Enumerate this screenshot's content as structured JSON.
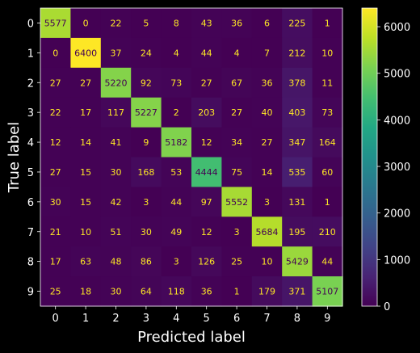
{
  "chart_data": {
    "type": "heatmap",
    "colormap": "viridis",
    "background": "#000000",
    "xlabel": "Predicted label",
    "ylabel": "True label",
    "x_categories": [
      "0",
      "1",
      "2",
      "3",
      "4",
      "5",
      "6",
      "7",
      "8",
      "9"
    ],
    "y_categories": [
      "0",
      "1",
      "2",
      "3",
      "4",
      "5",
      "6",
      "7",
      "8",
      "9"
    ],
    "values": [
      [
        5577,
        0,
        22,
        5,
        8,
        43,
        36,
        6,
        225,
        1
      ],
      [
        0,
        6400,
        37,
        24,
        4,
        44,
        4,
        7,
        212,
        10
      ],
      [
        27,
        27,
        5220,
        92,
        73,
        27,
        67,
        36,
        378,
        11
      ],
      [
        22,
        17,
        117,
        5227,
        2,
        203,
        27,
        40,
        403,
        73
      ],
      [
        12,
        14,
        41,
        9,
        5182,
        12,
        34,
        27,
        347,
        164
      ],
      [
        27,
        15,
        30,
        168,
        53,
        4444,
        75,
        14,
        535,
        60
      ],
      [
        30,
        15,
        42,
        3,
        44,
        97,
        5552,
        3,
        131,
        1
      ],
      [
        21,
        10,
        51,
        30,
        49,
        12,
        3,
        5684,
        195,
        210
      ],
      [
        17,
        63,
        48,
        86,
        3,
        126,
        25,
        10,
        5429,
        44
      ],
      [
        25,
        18,
        30,
        64,
        118,
        36,
        1,
        179,
        371,
        5107
      ]
    ],
    "value_range": [
      0,
      6400
    ],
    "colorbar_ticks": [
      0,
      1000,
      2000,
      3000,
      4000,
      5000,
      6000
    ],
    "grid": false
  }
}
